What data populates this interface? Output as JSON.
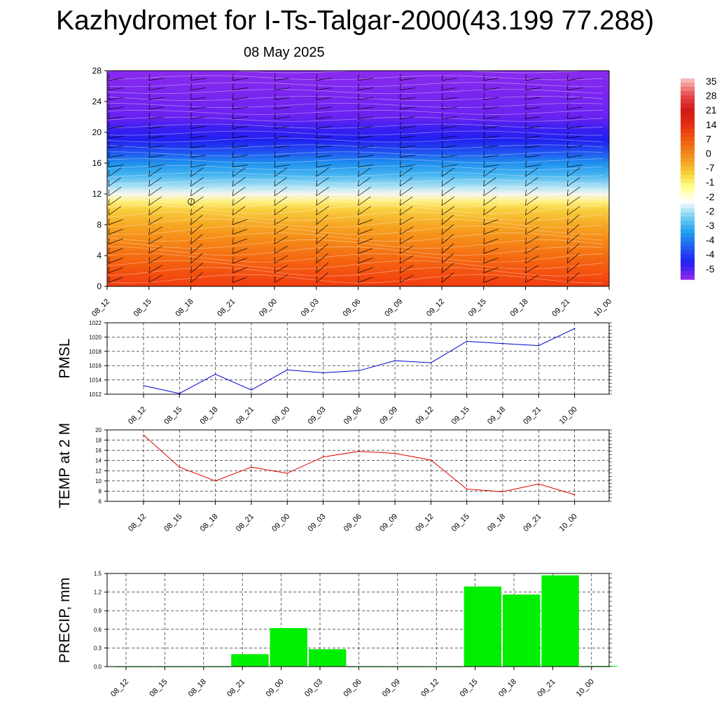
{
  "header": {
    "title": "Kazhydromet for I-Ts-Talgar-2000(43.199 77.288)",
    "date": "08 May 2025"
  },
  "chart_data": [
    {
      "type": "heatmap",
      "panel": "cross-section",
      "x_ticks": [
        "08_12",
        "08_15",
        "08_18",
        "08_21",
        "09_00",
        "09_03",
        "09_06",
        "09_09",
        "09_12",
        "09_15",
        "09_18",
        "09_21",
        "10_00"
      ],
      "y_ticks": [
        0,
        4,
        8,
        12,
        16,
        20,
        24,
        28
      ],
      "ylim": [
        0,
        28
      ],
      "colorbar_labels": [
        "35",
        "28",
        "21",
        "14",
        "7",
        "0",
        "-7",
        "-1",
        "-2",
        "-2",
        "-3",
        "-4",
        "-4",
        "-5"
      ],
      "colorbar_colors": [
        "#f5b8b8",
        "#e84848",
        "#d01818",
        "#e83010",
        "#f06010",
        "#f09020",
        "#f8c830",
        "#ffff88",
        "#ffffff",
        "#78d0f0",
        "#20a0f0",
        "#2060f0",
        "#2020f0",
        "#8828f0"
      ],
      "level_colors": [
        {
          "level": 0,
          "color": "#f23c10"
        },
        {
          "level": 3,
          "color": "#f46010"
        },
        {
          "level": 6,
          "color": "#f58a18"
        },
        {
          "level": 8,
          "color": "#f6a823"
        },
        {
          "level": 10,
          "color": "#f8d040"
        },
        {
          "level": 11,
          "color": "#fff080"
        },
        {
          "level": 12,
          "color": "#f4f6f0"
        },
        {
          "level": 13,
          "color": "#a8e0f4"
        },
        {
          "level": 14.5,
          "color": "#44b4f0"
        },
        {
          "level": 16,
          "color": "#2090ee"
        },
        {
          "level": 17.5,
          "color": "#2050f0"
        },
        {
          "level": 19,
          "color": "#2020f0"
        },
        {
          "level": 20.5,
          "color": "#3a1ff0"
        },
        {
          "level": 22,
          "color": "#6a22f0"
        },
        {
          "level": 28,
          "color": "#8a2aee"
        }
      ]
    },
    {
      "type": "line",
      "ylabel": "PMSL",
      "categories": [
        "08_12",
        "08_15",
        "08_18",
        "08_21",
        "09_00",
        "09_03",
        "09_06",
        "09_09",
        "09_12",
        "09_15",
        "09_18",
        "09_21",
        "10_00"
      ],
      "values": [
        1013.2,
        1012.1,
        1014.8,
        1012.6,
        1015.4,
        1015.0,
        1015.3,
        1016.7,
        1016.4,
        1019.4,
        1019.1,
        1018.8,
        1021.2
      ],
      "ylim": [
        1012,
        1022
      ],
      "y_ticks": [
        1012,
        1014,
        1016,
        1018,
        1020,
        1022
      ],
      "color": "#0000cc",
      "grid": true
    },
    {
      "type": "line",
      "ylabel": "TEMP at 2 M",
      "categories": [
        "08_12",
        "08_15",
        "08_18",
        "08_21",
        "09_00",
        "09_03",
        "09_06",
        "09_09",
        "09_12",
        "09_15",
        "09_18",
        "09_21",
        "10_00"
      ],
      "values": [
        19.0,
        12.7,
        10.0,
        12.7,
        11.5,
        14.7,
        15.8,
        15.4,
        14.1,
        8.4,
        7.9,
        9.4,
        7.3
      ],
      "ylim": [
        6,
        20
      ],
      "y_ticks": [
        6,
        8,
        10,
        12,
        14,
        16,
        18,
        20
      ],
      "color": "#dd0000",
      "grid": true
    },
    {
      "type": "bar",
      "ylabel": "PRECIP, mm",
      "categories": [
        "08_12",
        "08_15",
        "08_18",
        "08_21",
        "09_00",
        "09_03",
        "09_06",
        "09_09",
        "09_12",
        "09_15",
        "09_18",
        "09_21",
        "10_00"
      ],
      "values": [
        0,
        0,
        0,
        0.2,
        0.62,
        0.28,
        0,
        0,
        0,
        1.29,
        1.16,
        1.47,
        0.01
      ],
      "ylim": [
        0,
        1.5
      ],
      "y_ticks": [
        "0.0",
        "0.3",
        "0.6",
        "0.9",
        "1.2",
        "1.5"
      ],
      "color": "#00ee00",
      "grid": true
    }
  ]
}
